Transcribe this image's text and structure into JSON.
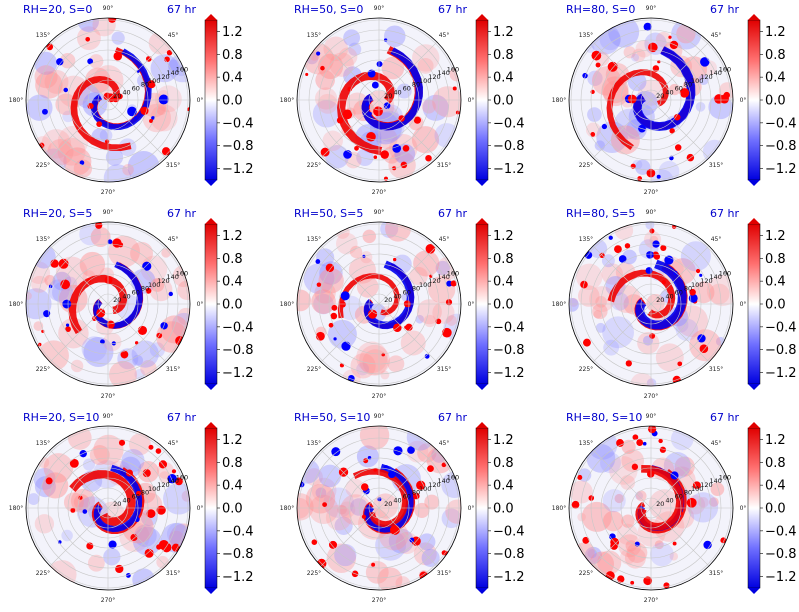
{
  "chart_data": [
    {
      "type": "heatmap",
      "title_left": "RH=20, S=0",
      "title_right": "67 hr",
      "colorbar_ticks": [
        "1.2",
        "0.8",
        "0.4",
        "0.0",
        "−0.4",
        "−0.8",
        "−1.2"
      ],
      "clim": [
        -1.4,
        1.4
      ],
      "angle_labels": [
        "0°",
        "45°",
        "90°",
        "135°",
        "180°",
        "225°",
        "270°",
        "315°"
      ],
      "radial_labels": [
        "20",
        "40",
        "60",
        "80",
        "100",
        "120",
        "140",
        "160"
      ]
    },
    {
      "type": "heatmap",
      "title_left": "RH=50, S=0",
      "title_right": "67 hr",
      "colorbar_ticks": [
        "1.2",
        "0.8",
        "0.4",
        "0.0",
        "−0.4",
        "−0.8",
        "−1.2"
      ],
      "clim": [
        -1.4,
        1.4
      ],
      "angle_labels": [
        "0°",
        "45°",
        "90°",
        "135°",
        "180°",
        "225°",
        "270°",
        "315°"
      ],
      "radial_labels": [
        "20",
        "40",
        "60",
        "80",
        "100",
        "120",
        "140",
        "160"
      ]
    },
    {
      "type": "heatmap",
      "title_left": "RH=80, S=0",
      "title_right": "67 hr",
      "colorbar_ticks": [
        "1.2",
        "0.8",
        "0.4",
        "0.0",
        "−0.4",
        "−0.8",
        "−1.2"
      ],
      "clim": [
        -1.4,
        1.4
      ],
      "angle_labels": [
        "0°",
        "45°",
        "90°",
        "135°",
        "180°",
        "225°",
        "270°",
        "315°"
      ],
      "radial_labels": [
        "20",
        "40",
        "60",
        "80",
        "100",
        "120",
        "140",
        "160"
      ]
    },
    {
      "type": "heatmap",
      "title_left": "RH=20, S=5",
      "title_right": "67 hr",
      "colorbar_ticks": [
        "1.2",
        "0.8",
        "0.4",
        "0.0",
        "−0.4",
        "−0.8",
        "−1.2"
      ],
      "clim": [
        -1.4,
        1.4
      ],
      "angle_labels": [
        "0°",
        "45°",
        "90°",
        "135°",
        "180°",
        "225°",
        "270°",
        "315°"
      ],
      "radial_labels": [
        "20",
        "40",
        "60",
        "80",
        "100",
        "120",
        "140",
        "160"
      ]
    },
    {
      "type": "heatmap",
      "title_left": "RH=50, S=5",
      "title_right": "67 hr",
      "colorbar_ticks": [
        "1.2",
        "0.8",
        "0.4",
        "0.0",
        "−0.4",
        "−0.8",
        "−1.2"
      ],
      "clim": [
        -1.4,
        1.4
      ],
      "angle_labels": [
        "0°",
        "45°",
        "90°",
        "135°",
        "180°",
        "225°",
        "270°",
        "315°"
      ],
      "radial_labels": [
        "20",
        "40",
        "60",
        "80",
        "100",
        "120",
        "140",
        "160"
      ]
    },
    {
      "type": "heatmap",
      "title_left": "RH=80, S=5",
      "title_right": "67 hr",
      "colorbar_ticks": [
        "1.2",
        "0.8",
        "0.4",
        "0.0",
        "−0.4",
        "−0.8",
        "−1.2"
      ],
      "clim": [
        -1.4,
        1.4
      ],
      "angle_labels": [
        "0°",
        "45°",
        "90°",
        "135°",
        "180°",
        "225°",
        "270°",
        "315°"
      ],
      "radial_labels": [
        "20",
        "40",
        "60",
        "80",
        "100",
        "120",
        "140",
        "160"
      ]
    },
    {
      "type": "heatmap",
      "title_left": "RH=20, S=10",
      "title_right": "67 hr",
      "colorbar_ticks": [
        "1.2",
        "0.8",
        "0.4",
        "0.0",
        "−0.4",
        "−0.8",
        "−1.2"
      ],
      "clim": [
        -1.4,
        1.4
      ],
      "angle_labels": [
        "0°",
        "45°",
        "90°",
        "135°",
        "180°",
        "225°",
        "270°",
        "315°"
      ],
      "radial_labels": [
        "20",
        "40",
        "60",
        "80",
        "100",
        "120",
        "140",
        "160"
      ]
    },
    {
      "type": "heatmap",
      "title_left": "RH=50, S=10",
      "title_right": "67 hr",
      "colorbar_ticks": [
        "1.2",
        "0.8",
        "0.4",
        "0.0",
        "−0.4",
        "−0.8",
        "−1.2"
      ],
      "clim": [
        -1.4,
        1.4
      ],
      "angle_labels": [
        "0°",
        "45°",
        "90°",
        "135°",
        "180°",
        "225°",
        "270°",
        "315°"
      ],
      "radial_labels": [
        "20",
        "40",
        "60",
        "80",
        "100",
        "120",
        "140",
        "160"
      ]
    },
    {
      "type": "heatmap",
      "title_left": "RH=80, S=10",
      "title_right": "67 hr",
      "colorbar_ticks": [
        "1.2",
        "0.8",
        "0.4",
        "0.0",
        "−0.4",
        "−0.8",
        "−1.2"
      ],
      "clim": [
        -1.4,
        1.4
      ],
      "angle_labels": [
        "0°",
        "45°",
        "90°",
        "135°",
        "180°",
        "225°",
        "270°",
        "315°"
      ],
      "radial_labels": [
        "20",
        "40",
        "60",
        "80",
        "100",
        "120",
        "140",
        "160"
      ]
    }
  ],
  "colors": {
    "positive": "#ff0000",
    "negative": "#0000ff",
    "title": "#0000cc"
  }
}
